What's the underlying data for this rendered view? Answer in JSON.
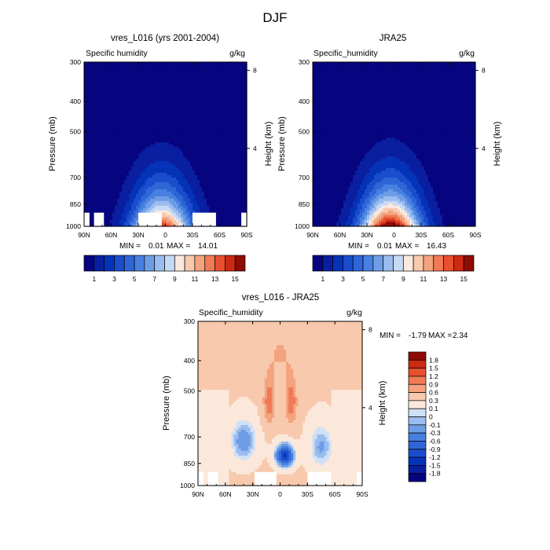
{
  "figure_title": "DJF",
  "colors": {
    "humidity_scale": [
      "#06047e",
      "#0a1ea0",
      "#0533b8",
      "#1a4ccc",
      "#2e66d6",
      "#4780e0",
      "#6e9de6",
      "#9bbcee",
      "#c6d9f5",
      "#fae9dd",
      "#f8c9ad",
      "#f4a37e",
      "#ef7a55",
      "#e8502f",
      "#cc2a14",
      "#8e0c06"
    ],
    "diff_scale": [
      "#06047e",
      "#0a1ea0",
      "#0533b8",
      "#1a4ccc",
      "#2e66d6",
      "#4780e0",
      "#6e9de6",
      "#9bbcee",
      "#cfe1f6",
      "#fbe8da",
      "#f8c9ad",
      "#f4a37e",
      "#ef7a55",
      "#e8502f",
      "#cc2a14",
      "#8e0c06"
    ],
    "no_data": "#ffffff"
  },
  "chart_data": [
    {
      "type": "heatmap",
      "title": "vres_L016 (yrs 2001-2004)",
      "variable_label": "Specific humidity",
      "units": "g/kg",
      "ylabel": "Pressure (mb)",
      "ylabel_right": "Height (km)",
      "x_ticks": [
        "90N",
        "60N",
        "30N",
        "0",
        "30S",
        "60S",
        "90S"
      ],
      "y_ticks": [
        "300",
        "400",
        "500",
        "700",
        "850",
        "1000"
      ],
      "y_ticks_right": [
        "8",
        "4"
      ],
      "x_range": [
        90,
        -90
      ],
      "y_range": [
        1000,
        300
      ],
      "min_label": "MIN =",
      "min": "0.01",
      "max_label": "MAX =",
      "max": "14.01",
      "surface_max": 14.0,
      "colorbar_labels": [
        "1",
        "3",
        "5",
        "7",
        "9",
        "11",
        "13",
        "15"
      ]
    },
    {
      "type": "heatmap",
      "title": "JRA25",
      "variable_label": "Specific_humidity",
      "units": "g/kg",
      "ylabel": "Pressure (mb)",
      "ylabel_right": "Height (km)",
      "x_ticks": [
        "90N",
        "60N",
        "30N",
        "0",
        "30S",
        "60S",
        "90S"
      ],
      "y_ticks": [
        "300",
        "400",
        "500",
        "700",
        "850",
        "1000"
      ],
      "y_ticks_right": [
        "8",
        "4"
      ],
      "x_range": [
        90,
        -90
      ],
      "y_range": [
        1000,
        300
      ],
      "min_label": "MIN =",
      "min": "0.01",
      "max_label": "MAX =",
      "max": "16.43",
      "surface_max": 16.4,
      "colorbar_labels": [
        "1",
        "3",
        "5",
        "7",
        "9",
        "11",
        "13",
        "15"
      ]
    },
    {
      "type": "heatmap",
      "title": "vres_L016 - JRA25",
      "variable_label": "Specific_humidity",
      "units": "g/kg",
      "ylabel": "Pressure (mb)",
      "ylabel_right": "Height (km)",
      "x_ticks": [
        "90N",
        "60N",
        "30N",
        "0",
        "30S",
        "60S",
        "90S"
      ],
      "y_ticks": [
        "300",
        "400",
        "500",
        "700",
        "850",
        "1000"
      ],
      "y_ticks_right": [
        "8",
        "4"
      ],
      "x_range": [
        90,
        -90
      ],
      "y_range": [
        1000,
        300
      ],
      "min_label": "MIN =",
      "min": "-1.79",
      "max_label": "MAX =",
      "max": "2.34",
      "colorbar_labels": [
        "1.8",
        "1.5",
        "1.2",
        "0.9",
        "0.6",
        "0.3",
        "0.1",
        "0",
        "-0.1",
        "-0.3",
        "-0.6",
        "-0.9",
        "-1.2",
        "-1.5",
        "-1.8"
      ]
    }
  ]
}
